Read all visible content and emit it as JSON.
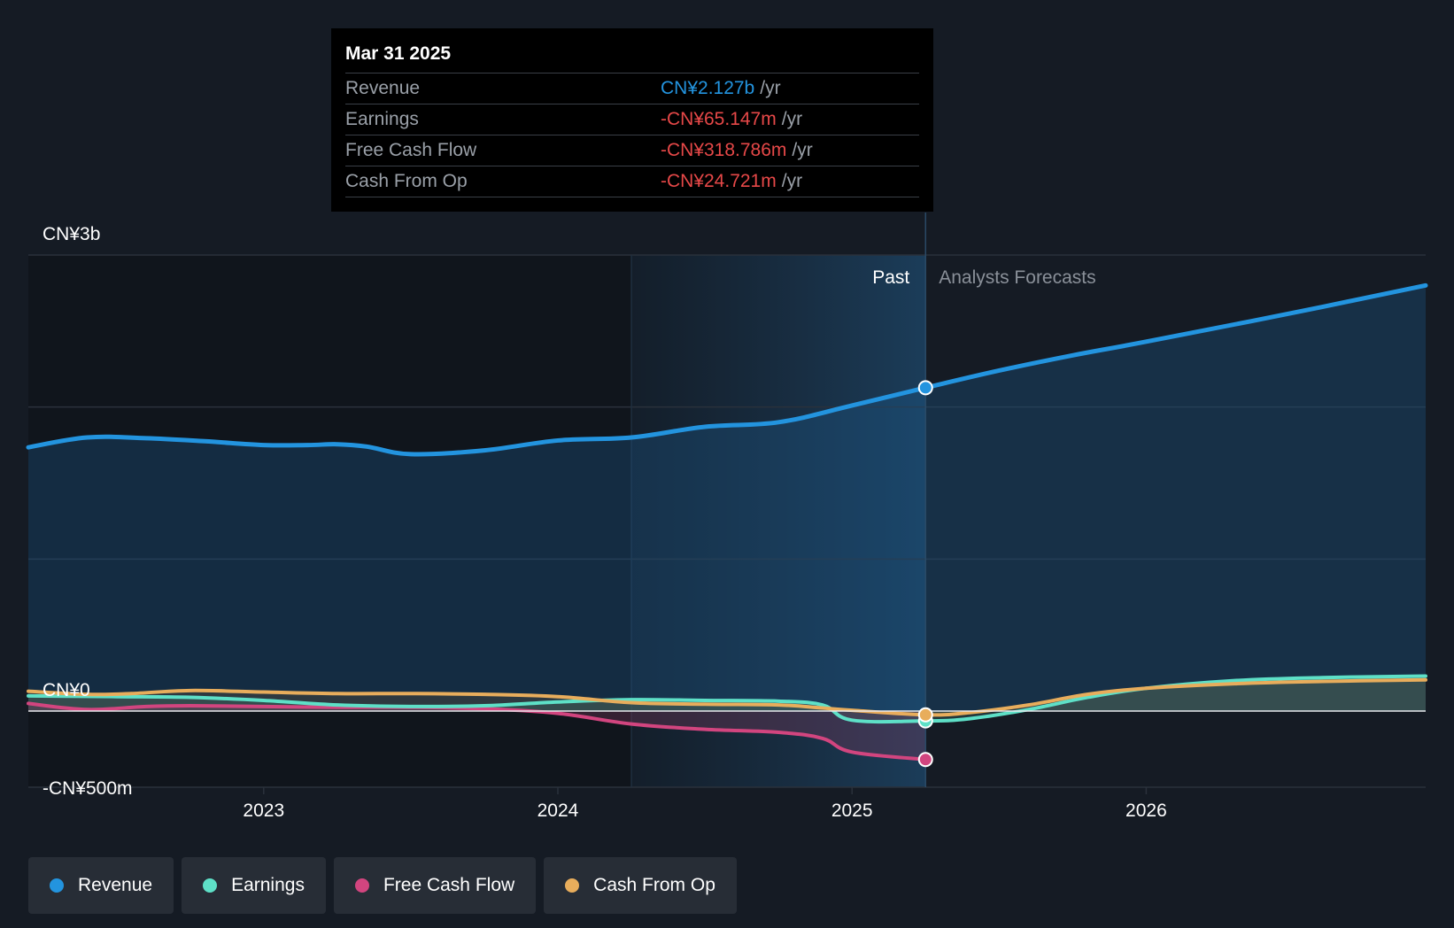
{
  "tooltip": {
    "date": "Mar 31 2025",
    "rows": [
      {
        "label": "Revenue",
        "value": "CN¥2.127b",
        "unit": "/yr",
        "color": "#2394df"
      },
      {
        "label": "Earnings",
        "value": "-CN¥65.147m",
        "unit": "/yr",
        "color": "#e64848"
      },
      {
        "label": "Free Cash Flow",
        "value": "-CN¥318.786m",
        "unit": "/yr",
        "color": "#e64848"
      },
      {
        "label": "Cash From Op",
        "value": "-CN¥24.721m",
        "unit": "/yr",
        "color": "#e64848"
      }
    ]
  },
  "legend": [
    {
      "label": "Revenue",
      "color": "#2394df"
    },
    {
      "label": "Earnings",
      "color": "#5ee0c7"
    },
    {
      "label": "Free Cash Flow",
      "color": "#d2457f"
    },
    {
      "label": "Cash From Op",
      "color": "#e8ad5c"
    }
  ],
  "chart_data": {
    "type": "line",
    "title": "",
    "ylim": [
      -500,
      3000
    ],
    "y_tick_labels": [
      {
        "value": 3000,
        "label": "CN¥3b"
      },
      {
        "value": 0,
        "label": "CN¥0"
      },
      {
        "value": -500,
        "label": "-CN¥500m"
      }
    ],
    "gridlines": [
      3000,
      2000,
      1000,
      0
    ],
    "xlim": [
      2022.2,
      2026.95
    ],
    "x_ticks": [
      {
        "value": 2023,
        "label": "2023"
      },
      {
        "value": 2024,
        "label": "2024"
      },
      {
        "value": 2025,
        "label": "2025"
      },
      {
        "value": 2026,
        "label": "2026"
      }
    ],
    "past_label": "Past",
    "forecast_label": "Analysts Forecasts",
    "divider_x": 2025.25,
    "highlight_start_x": 2024.25,
    "series": [
      {
        "name": "Revenue",
        "color": "#2394df",
        "key": "revenue",
        "points": [
          [
            2022.2,
            1735
          ],
          [
            2022.4,
            1800
          ],
          [
            2022.6,
            1795
          ],
          [
            2022.8,
            1775
          ],
          [
            2023.0,
            1750
          ],
          [
            2023.15,
            1750
          ],
          [
            2023.25,
            1755
          ],
          [
            2023.35,
            1740
          ],
          [
            2023.5,
            1690
          ],
          [
            2023.75,
            1715
          ],
          [
            2024.0,
            1780
          ],
          [
            2024.25,
            1800
          ],
          [
            2024.5,
            1870
          ],
          [
            2024.75,
            1900
          ],
          [
            2025.0,
            2010
          ],
          [
            2025.25,
            2127
          ],
          [
            2025.5,
            2240
          ],
          [
            2025.75,
            2340
          ],
          [
            2026.0,
            2430
          ],
          [
            2026.5,
            2620
          ],
          [
            2026.95,
            2800
          ]
        ]
      },
      {
        "name": "Earnings",
        "color": "#5ee0c7",
        "key": "earnings",
        "points": [
          [
            2022.2,
            100
          ],
          [
            2022.5,
            95
          ],
          [
            2022.75,
            90
          ],
          [
            2023.0,
            70
          ],
          [
            2023.25,
            40
          ],
          [
            2023.5,
            30
          ],
          [
            2023.75,
            35
          ],
          [
            2024.0,
            60
          ],
          [
            2024.25,
            75
          ],
          [
            2024.5,
            70
          ],
          [
            2024.75,
            65
          ],
          [
            2024.9,
            40
          ],
          [
            2025.0,
            -60
          ],
          [
            2025.25,
            -65
          ],
          [
            2025.4,
            -50
          ],
          [
            2025.6,
            10
          ],
          [
            2025.8,
            90
          ],
          [
            2026.0,
            150
          ],
          [
            2026.3,
            200
          ],
          [
            2026.6,
            220
          ],
          [
            2026.95,
            230
          ]
        ]
      },
      {
        "name": "Free Cash Flow",
        "color": "#d2457f",
        "key": "fcf",
        "points": [
          [
            2022.2,
            50
          ],
          [
            2022.4,
            10
          ],
          [
            2022.6,
            30
          ],
          [
            2022.75,
            35
          ],
          [
            2023.0,
            30
          ],
          [
            2023.25,
            25
          ],
          [
            2023.5,
            25
          ],
          [
            2023.75,
            15
          ],
          [
            2024.0,
            -15
          ],
          [
            2024.25,
            -85
          ],
          [
            2024.5,
            -120
          ],
          [
            2024.75,
            -140
          ],
          [
            2024.9,
            -180
          ],
          [
            2025.0,
            -270
          ],
          [
            2025.25,
            -319
          ]
        ]
      },
      {
        "name": "Cash From Op",
        "color": "#e8ad5c",
        "key": "cfo",
        "points": [
          [
            2022.2,
            130
          ],
          [
            2022.4,
            110
          ],
          [
            2022.55,
            115
          ],
          [
            2022.75,
            135
          ],
          [
            2023.0,
            125
          ],
          [
            2023.25,
            115
          ],
          [
            2023.5,
            115
          ],
          [
            2023.75,
            110
          ],
          [
            2024.0,
            95
          ],
          [
            2024.25,
            55
          ],
          [
            2024.5,
            45
          ],
          [
            2024.75,
            40
          ],
          [
            2024.9,
            20
          ],
          [
            2025.0,
            5
          ],
          [
            2025.25,
            -25
          ],
          [
            2025.4,
            -10
          ],
          [
            2025.6,
            40
          ],
          [
            2025.8,
            110
          ],
          [
            2026.0,
            150
          ],
          [
            2026.3,
            180
          ],
          [
            2026.6,
            195
          ],
          [
            2026.95,
            205
          ]
        ]
      }
    ],
    "markers": [
      {
        "series": "revenue",
        "x": 2025.25,
        "y": 2127
      },
      {
        "series": "earnings",
        "x": 2025.25,
        "y": -65
      },
      {
        "series": "cfo",
        "x": 2025.25,
        "y": -25
      },
      {
        "series": "fcf",
        "x": 2025.25,
        "y": -319
      }
    ]
  }
}
